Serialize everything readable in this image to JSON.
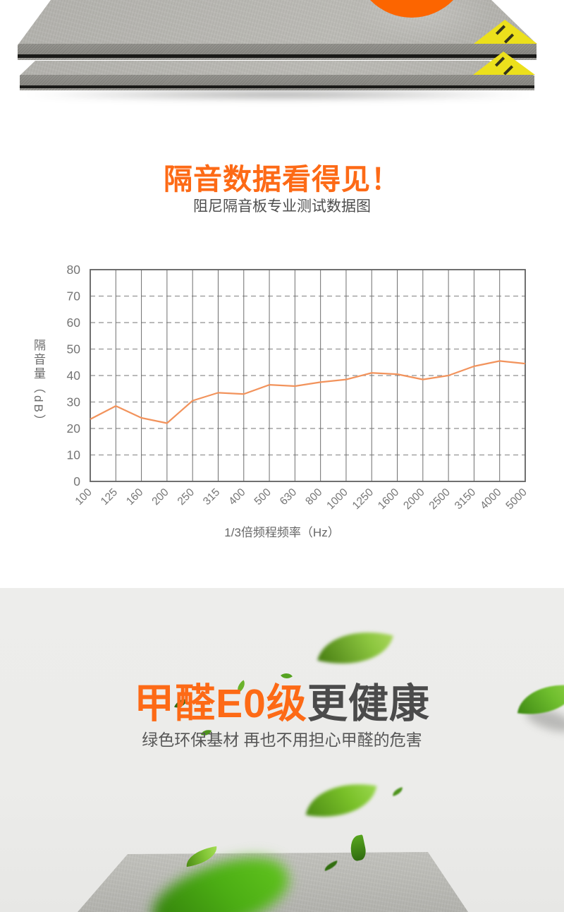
{
  "section1": {
    "title": "隔音数据看得见！",
    "subtitle": "阻尼隔音板专业测试数据图"
  },
  "chart_data": {
    "type": "line",
    "x": [
      "100",
      "125",
      "160",
      "200",
      "250",
      "315",
      "400",
      "500",
      "630",
      "800",
      "1000",
      "1250",
      "1600",
      "2000",
      "2500",
      "3150",
      "4000",
      "5000"
    ],
    "values": [
      23.5,
      28.5,
      24,
      22,
      30.5,
      33.5,
      33,
      36.5,
      36,
      37.5,
      38.5,
      41,
      40.5,
      38.5,
      40,
      43.5,
      45.5,
      44.5
    ],
    "ylim": [
      0,
      80
    ],
    "ytick_step": 10,
    "ylabel": "隔音量（dB）",
    "xlabel": "1/3倍频程频率（Hz）",
    "grid": {
      "vertical": "solid",
      "horizontal": "dashed"
    },
    "legend_position": "none",
    "line_color": "#f2935c"
  },
  "section2": {
    "title_highlight": "甲醛E0级",
    "title_rest": "更健康",
    "subtitle": "绿色环保基材 再也不用担心甲醛的危害"
  },
  "colors": {
    "accent_orange": "#fd6a16",
    "circle_orange": "#fc6500",
    "sticker_yellow": "#ece01c",
    "chart_line_orange": "#f2935c",
    "board_gray": "#b5b4af",
    "section_bg_gray": "#ececea",
    "leaf_green": "#5aa622"
  }
}
